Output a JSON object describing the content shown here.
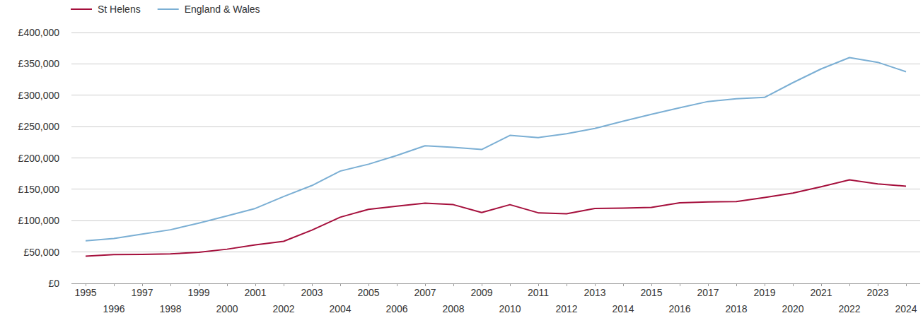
{
  "chart_data": {
    "type": "line",
    "x": [
      1995,
      1996,
      1997,
      1998,
      1999,
      2000,
      2001,
      2002,
      2003,
      2004,
      2005,
      2006,
      2007,
      2008,
      2009,
      2010,
      2011,
      2012,
      2013,
      2014,
      2015,
      2016,
      2017,
      2018,
      2019,
      2020,
      2021,
      2022,
      2023,
      2024
    ],
    "series": [
      {
        "name": "St Helens",
        "color": "#a50f3c",
        "values": [
          43500,
          46000,
          46200,
          47000,
          49500,
          54500,
          61500,
          67000,
          85000,
          105500,
          118000,
          123000,
          128000,
          125500,
          113000,
          125500,
          112500,
          111000,
          119500,
          120000,
          121000,
          128500,
          130000,
          130500,
          137000,
          144000,
          154000,
          165000,
          158500,
          155000
        ]
      },
      {
        "name": "England & Wales",
        "color": "#7bafd4",
        "values": [
          68000,
          71500,
          78500,
          85500,
          96000,
          107500,
          119500,
          138500,
          156000,
          179000,
          190000,
          204000,
          219500,
          217000,
          213500,
          236000,
          232500,
          238500,
          247000,
          258500,
          269500,
          280000,
          290000,
          294500,
          296500,
          320000,
          342000,
          360000,
          352500,
          337500
        ]
      }
    ],
    "xlim": [
      1994.5,
      2024.5
    ],
    "xticks": [
      1995,
      1996,
      1997,
      1998,
      1999,
      2000,
      2001,
      2002,
      2003,
      2004,
      2005,
      2006,
      2007,
      2008,
      2009,
      2010,
      2011,
      2012,
      2013,
      2014,
      2015,
      2016,
      2017,
      2018,
      2019,
      2020,
      2021,
      2022,
      2023,
      2024
    ],
    "ylim": [
      0,
      400000
    ],
    "yticks": [
      {
        "value": 0,
        "label": "£0"
      },
      {
        "value": 50000,
        "label": "£50,000"
      },
      {
        "value": 100000,
        "label": "£100,000"
      },
      {
        "value": 150000,
        "label": "£150,000"
      },
      {
        "value": 200000,
        "label": "£200,000"
      },
      {
        "value": 250000,
        "label": "£250,000"
      },
      {
        "value": 300000,
        "label": "£300,000"
      },
      {
        "value": 350000,
        "label": "£350,000"
      },
      {
        "value": 400000,
        "label": "£400,000"
      }
    ],
    "grid": true,
    "legend": "top-left"
  }
}
